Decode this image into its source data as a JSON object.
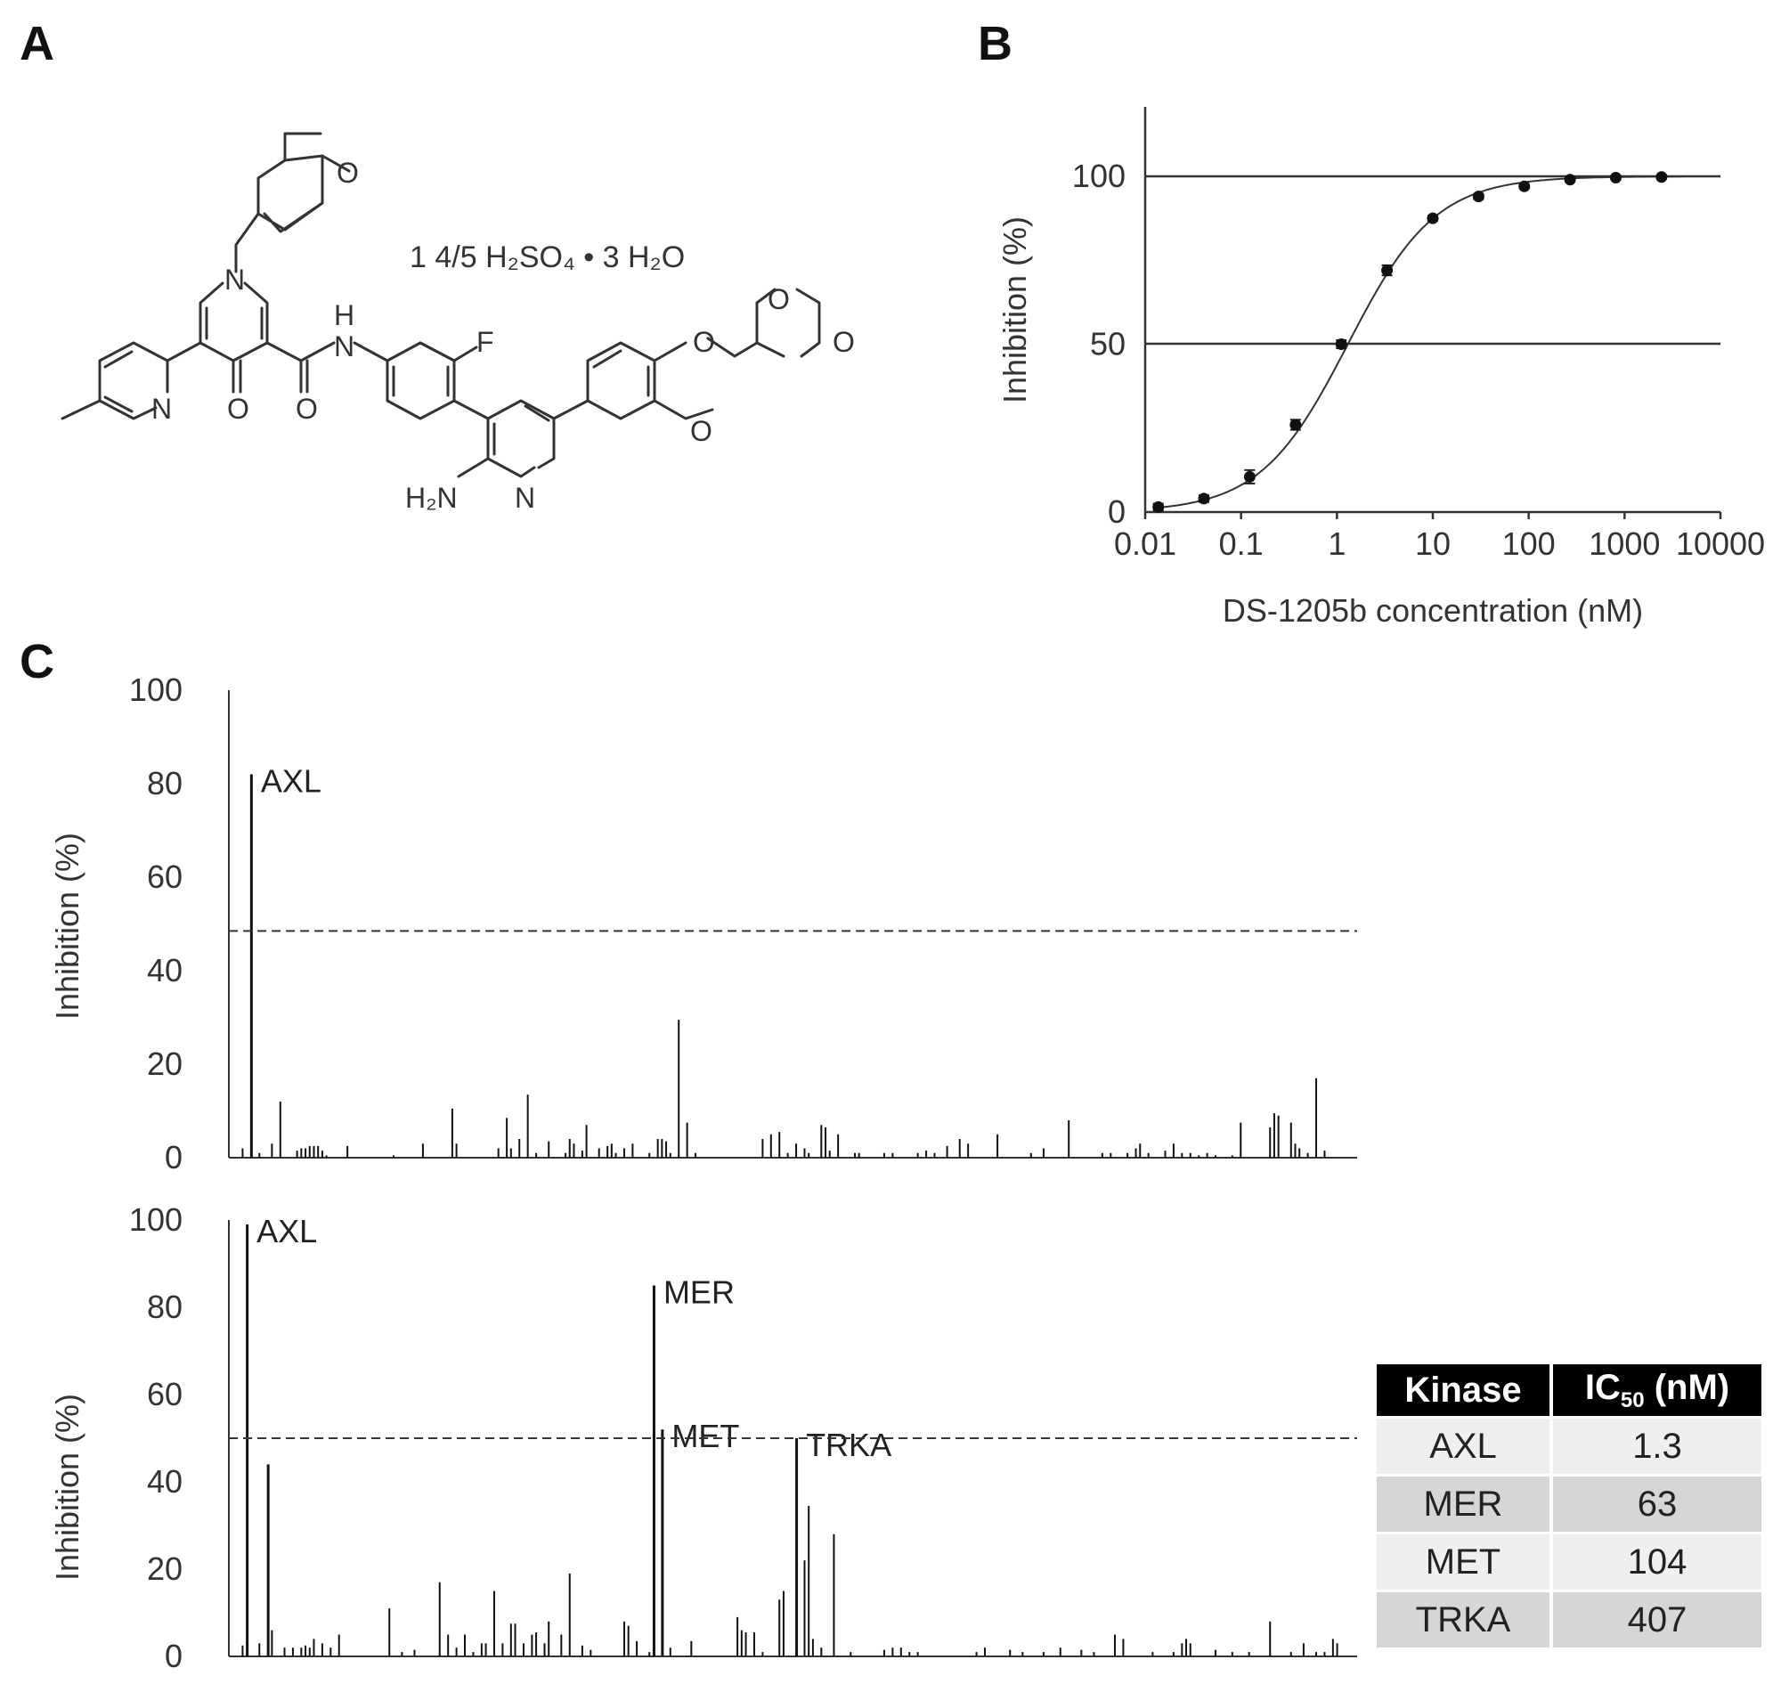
{
  "panels": {
    "a": "A",
    "b": "B",
    "c": "C"
  },
  "structure": {
    "salt": "1 4/5 H₂SO₄ • 3 H₂O",
    "atoms": [
      "O",
      "N",
      "O",
      "O",
      "H",
      "N",
      "F",
      "N",
      "O",
      "O",
      "O",
      "H₂N",
      "N",
      "O"
    ]
  },
  "chart_data": [
    {
      "type": "line",
      "panel": "B",
      "xlabel": "DS-1205b concentration (nM)",
      "ylabel": "Inhibition  (%)",
      "x_scale": "log",
      "xlim": [
        0.01,
        10000
      ],
      "ylim": [
        0,
        120
      ],
      "xticks": [
        "0.01",
        "0.1",
        "1",
        "10",
        "100",
        "1000",
        "10000"
      ],
      "yticks": [
        "0",
        "50",
        "100"
      ],
      "reference_lines": [
        50,
        100
      ],
      "points": [
        {
          "x": 0.0137,
          "y": 1.5,
          "err": 1.0
        },
        {
          "x": 0.041,
          "y": 4.0,
          "err": 1.0
        },
        {
          "x": 0.123,
          "y": 10.5,
          "err": 2.0
        },
        {
          "x": 0.37,
          "y": 26.0,
          "err": 1.5
        },
        {
          "x": 1.11,
          "y": 50.0,
          "err": 1.2
        },
        {
          "x": 3.33,
          "y": 72.0,
          "err": 1.5
        },
        {
          "x": 10.0,
          "y": 87.5,
          "err": 0.8
        },
        {
          "x": 30.0,
          "y": 94.0,
          "err": 0.8
        },
        {
          "x": 90.0,
          "y": 97.0,
          "err": 0.6
        },
        {
          "x": 270.0,
          "y": 99.0,
          "err": 0.5
        },
        {
          "x": 810.0,
          "y": 99.6,
          "err": 0.5
        },
        {
          "x": 2430.0,
          "y": 99.8,
          "err": 0.5
        }
      ],
      "fit": {
        "ic50": 1.3,
        "hill": 0.95
      }
    },
    {
      "type": "bar",
      "panel": "C-top",
      "ylabel": "Inhibition  (%)",
      "ylim": [
        0,
        100
      ],
      "yticks": [
        "0",
        "20",
        "40",
        "60",
        "80",
        "100"
      ],
      "threshold": 48.5,
      "bar_count": 265,
      "bars": [
        {
          "i": 2,
          "v": 2
        },
        {
          "i": 4,
          "v": 82,
          "label": "AXL"
        },
        {
          "i": 6,
          "v": 1
        },
        {
          "i": 9,
          "v": 3
        },
        {
          "i": 11,
          "v": 12
        },
        {
          "i": 15,
          "v": 1.5
        },
        {
          "i": 16,
          "v": 2
        },
        {
          "i": 17,
          "v": 2
        },
        {
          "i": 18,
          "v": 2.5
        },
        {
          "i": 19,
          "v": 2.5
        },
        {
          "i": 20,
          "v": 2.5
        },
        {
          "i": 21,
          "v": 1.5
        },
        {
          "i": 22,
          "v": 0.5
        },
        {
          "i": 27,
          "v": 2.5
        },
        {
          "i": 38,
          "v": 0.5
        },
        {
          "i": 45,
          "v": 3
        },
        {
          "i": 52,
          "v": 10.5
        },
        {
          "i": 53,
          "v": 3
        },
        {
          "i": 63,
          "v": 2
        },
        {
          "i": 65,
          "v": 8.5
        },
        {
          "i": 66,
          "v": 2
        },
        {
          "i": 68,
          "v": 4
        },
        {
          "i": 70,
          "v": 13.5
        },
        {
          "i": 72,
          "v": 1
        },
        {
          "i": 75,
          "v": 3.5
        },
        {
          "i": 79,
          "v": 1
        },
        {
          "i": 80,
          "v": 4
        },
        {
          "i": 81,
          "v": 3
        },
        {
          "i": 83,
          "v": 1.5
        },
        {
          "i": 84,
          "v": 7
        },
        {
          "i": 87,
          "v": 2
        },
        {
          "i": 89,
          "v": 2.5
        },
        {
          "i": 90,
          "v": 3
        },
        {
          "i": 91,
          "v": 1
        },
        {
          "i": 93,
          "v": 2
        },
        {
          "i": 95,
          "v": 3
        },
        {
          "i": 99,
          "v": 1
        },
        {
          "i": 101,
          "v": 4
        },
        {
          "i": 102,
          "v": 4
        },
        {
          "i": 103,
          "v": 3.5
        },
        {
          "i": 104,
          "v": 1
        },
        {
          "i": 106,
          "v": 29.5
        },
        {
          "i": 108,
          "v": 7.5
        },
        {
          "i": 110,
          "v": 1
        },
        {
          "i": 126,
          "v": 4
        },
        {
          "i": 128,
          "v": 5
        },
        {
          "i": 130,
          "v": 5.5
        },
        {
          "i": 132,
          "v": 1
        },
        {
          "i": 134,
          "v": 3
        },
        {
          "i": 136,
          "v": 2
        },
        {
          "i": 137,
          "v": 1
        },
        {
          "i": 140,
          "v": 7
        },
        {
          "i": 141,
          "v": 6.5
        },
        {
          "i": 142,
          "v": 1.5
        },
        {
          "i": 144,
          "v": 5
        },
        {
          "i": 148,
          "v": 1
        },
        {
          "i": 149,
          "v": 1
        },
        {
          "i": 155,
          "v": 1
        },
        {
          "i": 157,
          "v": 1
        },
        {
          "i": 163,
          "v": 1
        },
        {
          "i": 165,
          "v": 1.5
        },
        {
          "i": 167,
          "v": 1
        },
        {
          "i": 170,
          "v": 2.5
        },
        {
          "i": 173,
          "v": 4
        },
        {
          "i": 175,
          "v": 3
        },
        {
          "i": 182,
          "v": 5
        },
        {
          "i": 190,
          "v": 1
        },
        {
          "i": 193,
          "v": 2
        },
        {
          "i": 199,
          "v": 8
        },
        {
          "i": 207,
          "v": 1
        },
        {
          "i": 209,
          "v": 1
        },
        {
          "i": 213,
          "v": 1
        },
        {
          "i": 215,
          "v": 2
        },
        {
          "i": 216,
          "v": 3
        },
        {
          "i": 218,
          "v": 1
        },
        {
          "i": 222,
          "v": 1.5
        },
        {
          "i": 224,
          "v": 3
        },
        {
          "i": 226,
          "v": 1
        },
        {
          "i": 228,
          "v": 1
        },
        {
          "i": 230,
          "v": 0.5
        },
        {
          "i": 232,
          "v": 1
        },
        {
          "i": 234,
          "v": 0.5
        },
        {
          "i": 238,
          "v": 0.5
        },
        {
          "i": 240,
          "v": 7.5
        },
        {
          "i": 247,
          "v": 6.5
        },
        {
          "i": 248,
          "v": 9.5
        },
        {
          "i": 249,
          "v": 9
        },
        {
          "i": 252,
          "v": 7.5
        },
        {
          "i": 253,
          "v": 3
        },
        {
          "i": 254,
          "v": 2
        },
        {
          "i": 256,
          "v": 1
        },
        {
          "i": 258,
          "v": 17
        },
        {
          "i": 260,
          "v": 1.5
        }
      ]
    },
    {
      "type": "bar",
      "panel": "C-bottom",
      "ylabel": "Inhibition  (%)",
      "ylim": [
        0,
        100
      ],
      "yticks": [
        "0",
        "20",
        "40",
        "60",
        "80",
        "100"
      ],
      "threshold": 50,
      "bar_count": 265,
      "bars": [
        {
          "i": 2,
          "v": 2.5
        },
        {
          "i": 3,
          "v": 99,
          "label": "AXL"
        },
        {
          "i": 6,
          "v": 3
        },
        {
          "i": 8,
          "v": 44
        },
        {
          "i": 9,
          "v": 6
        },
        {
          "i": 12,
          "v": 2
        },
        {
          "i": 14,
          "v": 2
        },
        {
          "i": 16,
          "v": 2
        },
        {
          "i": 17,
          "v": 2.5
        },
        {
          "i": 18,
          "v": 2
        },
        {
          "i": 19,
          "v": 4
        },
        {
          "i": 21,
          "v": 3
        },
        {
          "i": 23,
          "v": 2
        },
        {
          "i": 25,
          "v": 5
        },
        {
          "i": 37,
          "v": 11
        },
        {
          "i": 40,
          "v": 1
        },
        {
          "i": 43,
          "v": 1.5
        },
        {
          "i": 49,
          "v": 17
        },
        {
          "i": 51,
          "v": 5
        },
        {
          "i": 53,
          "v": 2
        },
        {
          "i": 55,
          "v": 5
        },
        {
          "i": 57,
          "v": 1
        },
        {
          "i": 59,
          "v": 3
        },
        {
          "i": 60,
          "v": 3
        },
        {
          "i": 62,
          "v": 15
        },
        {
          "i": 64,
          "v": 3
        },
        {
          "i": 66,
          "v": 7.5
        },
        {
          "i": 67,
          "v": 7.5
        },
        {
          "i": 69,
          "v": 3
        },
        {
          "i": 71,
          "v": 5
        },
        {
          "i": 72,
          "v": 5.5
        },
        {
          "i": 74,
          "v": 3
        },
        {
          "i": 75,
          "v": 8
        },
        {
          "i": 78,
          "v": 5
        },
        {
          "i": 80,
          "v": 19
        },
        {
          "i": 83,
          "v": 2.5
        },
        {
          "i": 85,
          "v": 1.5
        },
        {
          "i": 93,
          "v": 8
        },
        {
          "i": 94,
          "v": 7
        },
        {
          "i": 96,
          "v": 3.5
        },
        {
          "i": 99,
          "v": 1
        },
        {
          "i": 100,
          "v": 85,
          "label": "MER"
        },
        {
          "i": 102,
          "v": 52,
          "label": "MET"
        },
        {
          "i": 104,
          "v": 2
        },
        {
          "i": 109,
          "v": 3.5
        },
        {
          "i": 120,
          "v": 9
        },
        {
          "i": 121,
          "v": 6
        },
        {
          "i": 122,
          "v": 5.5
        },
        {
          "i": 124,
          "v": 5.5
        },
        {
          "i": 126,
          "v": 1
        },
        {
          "i": 130,
          "v": 13
        },
        {
          "i": 131,
          "v": 15
        },
        {
          "i": 134,
          "v": 50,
          "label": "TRKA"
        },
        {
          "i": 136,
          "v": 22
        },
        {
          "i": 137,
          "v": 34.5
        },
        {
          "i": 138,
          "v": 4
        },
        {
          "i": 140,
          "v": 2
        },
        {
          "i": 143,
          "v": 28
        },
        {
          "i": 147,
          "v": 1
        },
        {
          "i": 155,
          "v": 1.5
        },
        {
          "i": 157,
          "v": 2
        },
        {
          "i": 159,
          "v": 2
        },
        {
          "i": 161,
          "v": 1
        },
        {
          "i": 163,
          "v": 1
        },
        {
          "i": 177,
          "v": 1
        },
        {
          "i": 179,
          "v": 2
        },
        {
          "i": 185,
          "v": 1.5
        },
        {
          "i": 188,
          "v": 1
        },
        {
          "i": 193,
          "v": 1
        },
        {
          "i": 197,
          "v": 2
        },
        {
          "i": 202,
          "v": 1.5
        },
        {
          "i": 205,
          "v": 1
        },
        {
          "i": 210,
          "v": 5
        },
        {
          "i": 212,
          "v": 4
        },
        {
          "i": 219,
          "v": 1
        },
        {
          "i": 224,
          "v": 1
        },
        {
          "i": 226,
          "v": 3
        },
        {
          "i": 227,
          "v": 4
        },
        {
          "i": 228,
          "v": 3
        },
        {
          "i": 234,
          "v": 1.5
        },
        {
          "i": 238,
          "v": 1
        },
        {
          "i": 242,
          "v": 1
        },
        {
          "i": 247,
          "v": 8
        },
        {
          "i": 252,
          "v": 1
        },
        {
          "i": 255,
          "v": 3
        },
        {
          "i": 258,
          "v": 1
        },
        {
          "i": 260,
          "v": 1
        },
        {
          "i": 262,
          "v": 4
        },
        {
          "i": 263,
          "v": 3
        }
      ]
    }
  ],
  "table": {
    "headers": [
      "Kinase",
      "IC",
      "50",
      " (nM)"
    ],
    "rows": [
      {
        "kinase": "AXL",
        "ic50": "1.3"
      },
      {
        "kinase": "MER",
        "ic50": "63"
      },
      {
        "kinase": "MET",
        "ic50": "104"
      },
      {
        "kinase": "TRKA",
        "ic50": "407"
      }
    ]
  }
}
